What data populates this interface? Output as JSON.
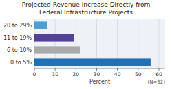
{
  "chart_data": {
    "type": "bar",
    "orientation": "horizontal",
    "title": "Projected Revenue Increase Directly from",
    "subtitle": "Federal Infrastructure Projects",
    "categories": [
      "0 to 5%",
      "6 to 10%",
      "11 to 19%",
      "20 to 29%"
    ],
    "values": [
      56,
      22,
      19,
      6
    ],
    "colors": [
      "#2171b5",
      "#aaaaaa",
      "#54429a",
      "#4a9fd4"
    ],
    "xlabel": "Percent",
    "xlim": [
      0,
      63
    ],
    "xticks": [
      0,
      10,
      20,
      30,
      40,
      50,
      60
    ],
    "annotation": "(N=32)",
    "grid": true
  }
}
